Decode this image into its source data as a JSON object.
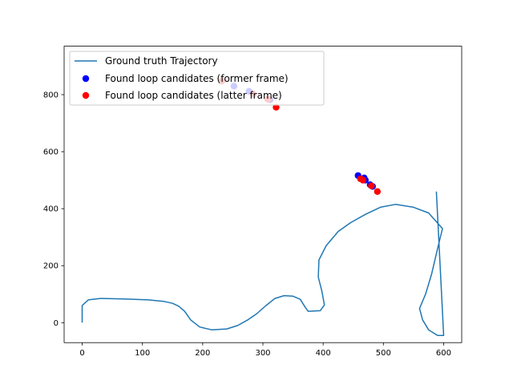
{
  "chart_data": {
    "type": "scatter",
    "xlim": [
      -30,
      630
    ],
    "ylim": [
      -70,
      970
    ],
    "x_ticks": [
      0,
      100,
      200,
      300,
      400,
      500,
      600
    ],
    "y_ticks": [
      0,
      200,
      400,
      600,
      800
    ],
    "grid": false,
    "legend_position": "top-left",
    "series": [
      {
        "name": "Ground truth Trajectory",
        "kind": "line",
        "color": "#1f77b4",
        "points": [
          [
            0,
            0
          ],
          [
            0,
            60
          ],
          [
            10,
            80
          ],
          [
            30,
            85
          ],
          [
            70,
            83
          ],
          [
            110,
            80
          ],
          [
            135,
            75
          ],
          [
            150,
            68
          ],
          [
            160,
            58
          ],
          [
            170,
            40
          ],
          [
            180,
            10
          ],
          [
            195,
            -15
          ],
          [
            215,
            -25
          ],
          [
            240,
            -22
          ],
          [
            258,
            -10
          ],
          [
            275,
            10
          ],
          [
            290,
            32
          ],
          [
            305,
            60
          ],
          [
            320,
            85
          ],
          [
            335,
            95
          ],
          [
            350,
            93
          ],
          [
            362,
            82
          ],
          [
            370,
            55
          ],
          [
            375,
            40
          ],
          [
            395,
            42
          ],
          [
            402,
            62
          ],
          [
            398,
            110
          ],
          [
            392,
            160
          ],
          [
            393,
            220
          ],
          [
            405,
            270
          ],
          [
            425,
            320
          ],
          [
            445,
            350
          ],
          [
            470,
            380
          ],
          [
            495,
            405
          ],
          [
            520,
            415
          ],
          [
            550,
            405
          ],
          [
            575,
            385
          ],
          [
            598,
            330
          ],
          [
            590,
            260
          ],
          [
            580,
            170
          ],
          [
            570,
            100
          ],
          [
            560,
            50
          ],
          [
            565,
            10
          ],
          [
            575,
            -25
          ],
          [
            590,
            -45
          ],
          [
            600,
            -45
          ],
          [
            588,
            460
          ]
        ]
      },
      {
        "name": "Found loop candidates (former frame)",
        "kind": "scatter",
        "color": "#0000ff",
        "points": [
          [
            458,
            516
          ],
          [
            468,
            508
          ],
          [
            470,
            500
          ],
          [
            478,
            484
          ],
          [
            482,
            478
          ],
          [
            252,
            830
          ],
          [
            277,
            812
          ],
          [
            312,
            782
          ]
        ]
      },
      {
        "name": "Found loop candidates (latter frame)",
        "kind": "scatter",
        "color": "#ff0000",
        "points": [
          [
            462,
            505
          ],
          [
            466,
            500
          ],
          [
            480,
            480
          ],
          [
            490,
            460
          ],
          [
            232,
            848
          ],
          [
            284,
            802
          ],
          [
            308,
            784
          ],
          [
            322,
            756
          ]
        ]
      }
    ]
  }
}
